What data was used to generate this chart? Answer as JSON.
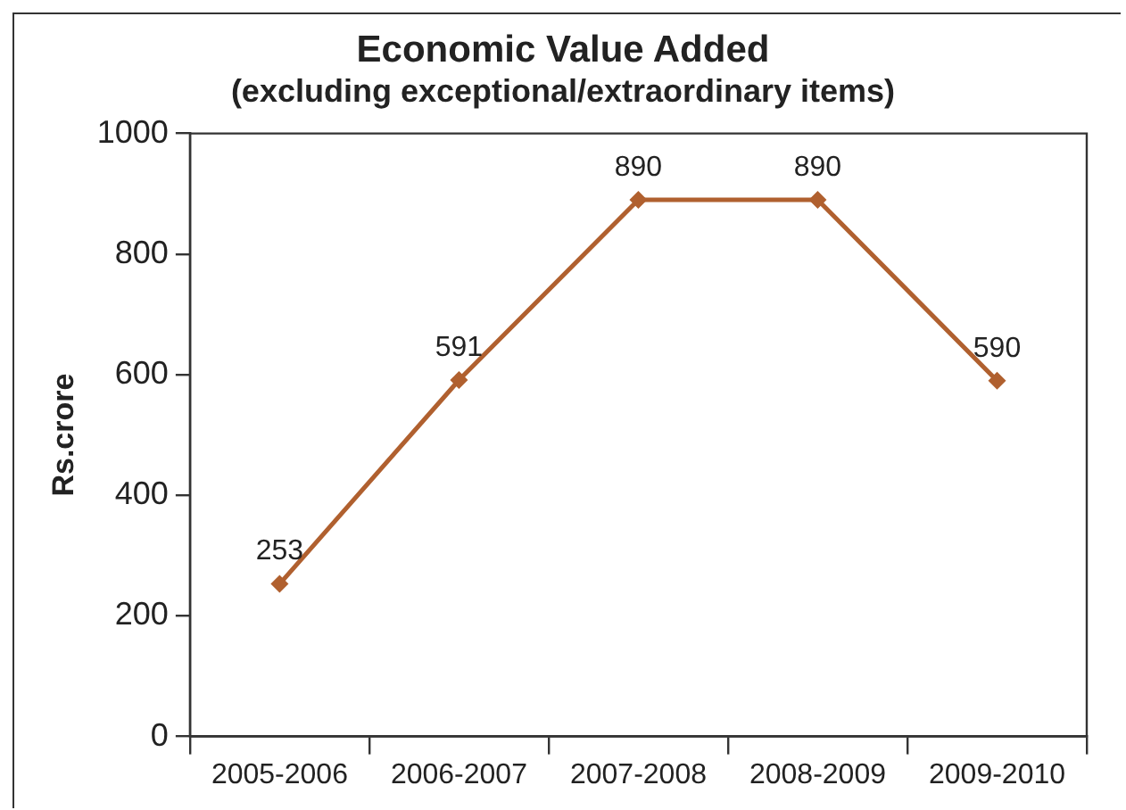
{
  "chart_data": {
    "type": "line",
    "title": "Economic Value Added",
    "subtitle": "(excluding exceptional/extraordinary items)",
    "ylabel": "Rs.crore",
    "categories": [
      "2005-2006",
      "2006-2007",
      "2007-2008",
      "2008-2009",
      "2009-2010"
    ],
    "series": [
      {
        "color": "#b0602f",
        "values": [
          253,
          591,
          890,
          890,
          590
        ]
      }
    ],
    "ylim": [
      0,
      1000
    ],
    "yticks": [
      0,
      200,
      400,
      600,
      800,
      1000
    ],
    "grid": false,
    "legend": false,
    "marker": "diamond",
    "line_style": "solid",
    "data_labels": true
  }
}
